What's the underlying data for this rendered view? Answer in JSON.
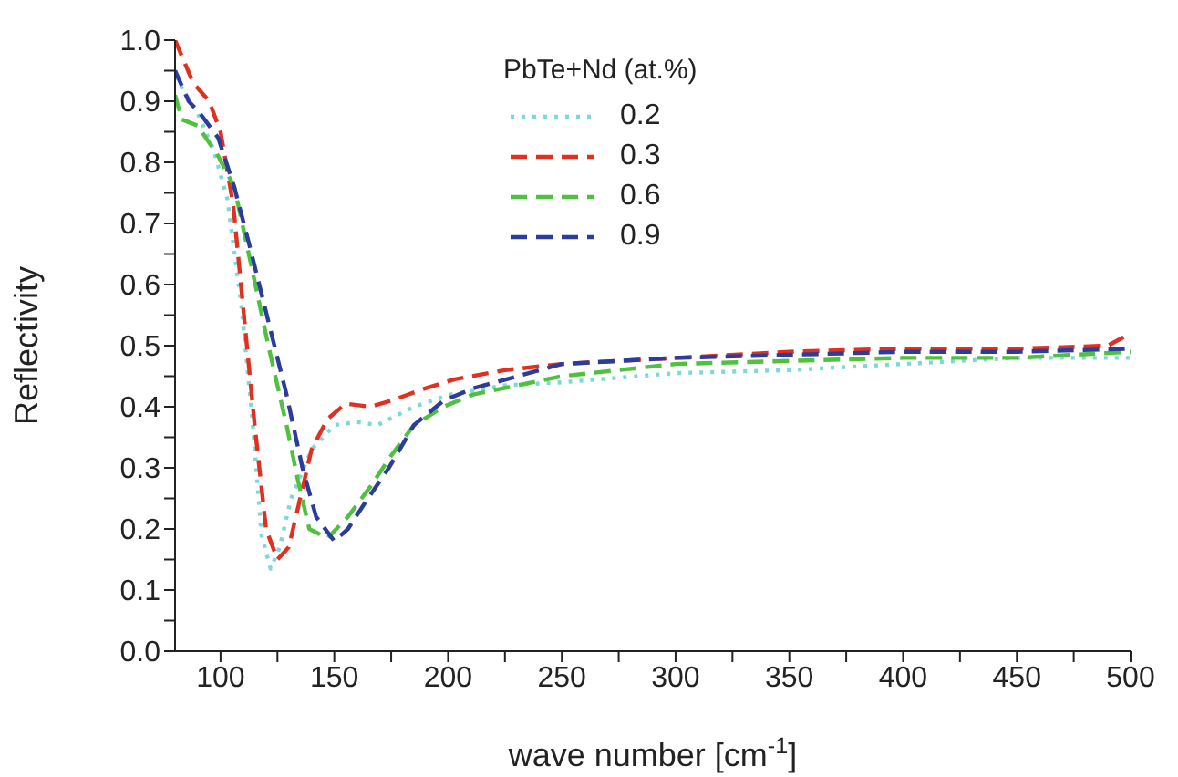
{
  "chart_data": {
    "type": "line",
    "xlabel": "wave number [cm$^{-1}$]",
    "ylabel": "Reflectivity",
    "legend_title": "PbTe+Nd (at.%)",
    "legend": "top",
    "xlim": [
      80,
      500
    ],
    "xticks": [
      100,
      {
        "value": 125,
        "label": null
      },
      150,
      {
        "value": 175,
        "label": null
      },
      200,
      {
        "value": 225,
        "label": null
      },
      250,
      {
        "value": 275,
        "label": null
      },
      300,
      {
        "value": 325,
        "label": null
      },
      350,
      {
        "value": 375,
        "label": null
      },
      400,
      {
        "value": 425,
        "label": null
      },
      450,
      {
        "value": 475,
        "label": null
      },
      500
    ],
    "ylim": [
      0,
      1
    ],
    "yticks": [
      {
        "value": 0,
        "label": "0.0"
      },
      {
        "value": 0.05,
        "label": null
      },
      {
        "value": 0.1,
        "label": "0.1"
      },
      {
        "value": 0.15,
        "label": null
      },
      {
        "value": 0.2,
        "label": "0.2"
      },
      {
        "value": 0.25,
        "label": null
      },
      {
        "value": 0.3,
        "label": "0.3"
      },
      {
        "value": 0.35,
        "label": null
      },
      {
        "value": 0.4,
        "label": "0.4"
      },
      {
        "value": 0.45,
        "label": null
      },
      {
        "value": 0.5,
        "label": "0.5"
      },
      {
        "value": 0.55,
        "label": null
      },
      {
        "value": 0.6,
        "label": "0.6"
      },
      {
        "value": 0.65,
        "label": null
      },
      {
        "value": 0.7,
        "label": "0.7"
      },
      {
        "value": 0.75,
        "label": null
      },
      {
        "value": 0.8,
        "label": "0.8"
      },
      {
        "value": 0.85,
        "label": null
      },
      {
        "value": 0.9,
        "label": "0.9"
      },
      {
        "value": 0.95,
        "label": null
      },
      {
        "value": 1,
        "label": "1.0"
      }
    ],
    "marker": "none",
    "series": [
      {
        "name": "0.2",
        "color": "#7fd8d8",
        "line_style": "dotted",
        "x": [
          80,
          90,
          97,
          103,
          109,
          114,
          118,
          122,
          126,
          131,
          140,
          150,
          160,
          169,
          185,
          201,
          225,
          250,
          300,
          350,
          400,
          450,
          500
        ],
        "values": [
          0.94,
          0.88,
          0.82,
          0.74,
          0.57,
          0.38,
          0.19,
          0.135,
          0.17,
          0.25,
          0.33,
          0.37,
          0.375,
          0.37,
          0.4,
          0.42,
          0.435,
          0.44,
          0.455,
          0.46,
          0.47,
          0.48,
          0.48
        ]
      },
      {
        "name": "0.3",
        "color": "#e03020",
        "line_style": "dashed",
        "x": [
          80,
          88,
          95,
          100,
          105.6,
          110,
          115,
          120,
          125,
          130,
          135,
          140,
          147,
          155,
          166,
          175,
          190,
          203,
          225,
          250,
          300,
          350,
          400,
          450,
          490,
          500
        ],
        "values": [
          1.0,
          0.93,
          0.9,
          0.85,
          0.73,
          0.56,
          0.37,
          0.2,
          0.15,
          0.17,
          0.25,
          0.33,
          0.38,
          0.405,
          0.4,
          0.41,
          0.43,
          0.445,
          0.46,
          0.47,
          0.48,
          0.49,
          0.495,
          0.495,
          0.5,
          0.52
        ]
      },
      {
        "name": "0.6",
        "color": "#50c040",
        "line_style": "dashed",
        "x": [
          80,
          83,
          90,
          99,
          106,
          113,
          121,
          129,
          134,
          139,
          147,
          156,
          166,
          175,
          185,
          198,
          211,
          250,
          300,
          350,
          400,
          450,
          500
        ],
        "values": [
          0.91,
          0.87,
          0.86,
          0.81,
          0.76,
          0.64,
          0.5,
          0.37,
          0.28,
          0.2,
          0.185,
          0.22,
          0.27,
          0.32,
          0.37,
          0.4,
          0.42,
          0.45,
          0.47,
          0.475,
          0.48,
          0.48,
          0.49
        ]
      },
      {
        "name": "0.9",
        "color": "#2c3c9c",
        "line_style": "dashed",
        "x": [
          80,
          86,
          91,
          99,
          106,
          113,
          121,
          129,
          136,
          142,
          150,
          156,
          163,
          174,
          185,
          198,
          211,
          250,
          300,
          350,
          400,
          450,
          500
        ],
        "values": [
          0.95,
          0.9,
          0.88,
          0.84,
          0.76,
          0.66,
          0.54,
          0.42,
          0.3,
          0.22,
          0.18,
          0.2,
          0.24,
          0.3,
          0.37,
          0.41,
          0.43,
          0.47,
          0.48,
          0.485,
          0.49,
          0.49,
          0.495
        ]
      }
    ]
  }
}
